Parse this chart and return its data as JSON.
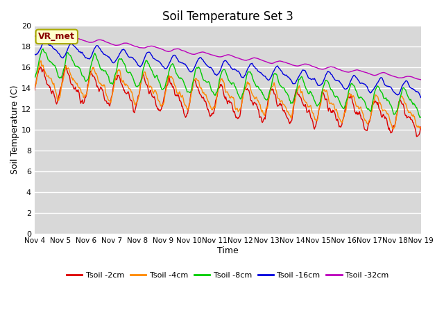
{
  "title": "Soil Temperature Set 3",
  "xlabel": "Time",
  "ylabel": "Soil Temperature (C)",
  "ylim": [
    0,
    20
  ],
  "yticks": [
    0,
    2,
    4,
    6,
    8,
    10,
    12,
    14,
    16,
    18,
    20
  ],
  "xtick_labels": [
    "Nov 4",
    "Nov 5",
    "Nov 6",
    "Nov 7",
    "Nov 8",
    "Nov 9",
    "Nov 10",
    "Nov 11",
    "Nov 12",
    "Nov 13",
    "Nov 14",
    "Nov 15",
    "Nov 16",
    "Nov 17",
    "Nov 18",
    "Nov 19"
  ],
  "annotation_text": "VR_met",
  "annotation_bg": "#ffffcc",
  "annotation_border": "#aaaa00",
  "fig_bg": "#ffffff",
  "plot_bg": "#d8d8d8",
  "grid_color": "#ffffff",
  "legend_labels": [
    "Tsoil -2cm",
    "Tsoil -4cm",
    "Tsoil -8cm",
    "Tsoil -16cm",
    "Tsoil -32cm"
  ],
  "line_colors": [
    "#dd0000",
    "#ff8800",
    "#00cc00",
    "#0000dd",
    "#bb00bb"
  ],
  "line_width": 1.0,
  "n_points": 720,
  "days": 15
}
